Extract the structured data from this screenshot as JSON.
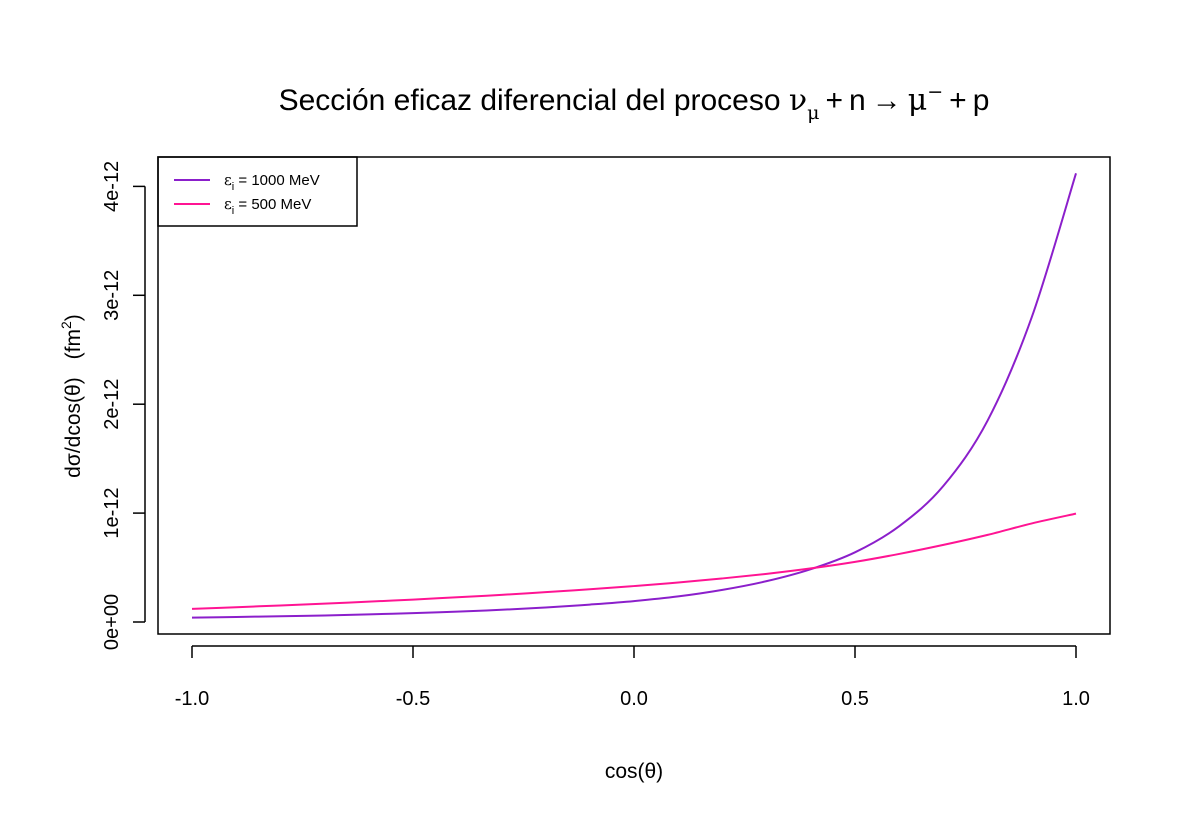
{
  "chart_data": {
    "type": "line",
    "title": {
      "text": "Sección  eficaz  diferencial  del  proceso",
      "nu": "ν",
      "nu_sub": "μ",
      "plus1": "+",
      "n": "n",
      "arrow": "→",
      "mu": "μ",
      "mu_sup": "−",
      "plus2": "+",
      "p": "p"
    },
    "xlabel": "cos(θ)",
    "ylabel": {
      "main": "dσ/dcos(θ)",
      "unit_open": "(fm",
      "unit_sup": "2",
      "unit_close": ")"
    },
    "xlim": [
      -1.0,
      1.0
    ],
    "ylim": [
      0,
      4.1e-12
    ],
    "x_ticks": [
      -1.0,
      -0.5,
      0.0,
      0.5,
      1.0
    ],
    "x_tick_labels": [
      "-1.0",
      "-0.5",
      "0.0",
      "0.5",
      "1.0"
    ],
    "y_ticks": [
      0,
      1e-12,
      2e-12,
      3e-12,
      4e-12
    ],
    "y_tick_labels": [
      "0e+00",
      "1e-12",
      "2e-12",
      "3e-12",
      "4e-12"
    ],
    "grid": false,
    "legend_position": "top-left",
    "x": [
      -1.0,
      -0.9,
      -0.8,
      -0.7,
      -0.6,
      -0.5,
      -0.4,
      -0.3,
      -0.2,
      -0.1,
      0.0,
      0.1,
      0.2,
      0.3,
      0.4,
      0.5,
      0.6,
      0.7,
      0.8,
      0.9,
      1.0
    ],
    "series": [
      {
        "name": "εi = 1000 MeV",
        "legend_eps": "ε",
        "legend_sub": "i",
        "legend_rest": " = 1000  MeV",
        "color": "#8B1FCB",
        "values": [
          4e-14,
          4.6e-14,
          5.3e-14,
          6e-14,
          7e-14,
          8.2e-14,
          9.5e-14,
          1.12e-13,
          1.33e-13,
          1.6e-13,
          1.92e-13,
          2.35e-13,
          2.95e-13,
          3.75e-13,
          4.85e-13,
          6.4e-13,
          8.8e-13,
          1.25e-12,
          1.85e-12,
          2.8e-12,
          4.12e-12
        ]
      },
      {
        "name": "εi = 500 MeV",
        "legend_eps": "ε",
        "legend_sub": "i",
        "legend_rest": " = 500  MeV",
        "color": "#FF1493",
        "values": [
          1.2e-13,
          1.36e-13,
          1.52e-13,
          1.69e-13,
          1.87e-13,
          2.06e-13,
          2.27e-13,
          2.49e-13,
          2.74e-13,
          3.01e-13,
          3.3e-13,
          3.63e-13,
          4e-13,
          4.42e-13,
          4.92e-13,
          5.52e-13,
          6.25e-13,
          7.08e-13,
          8e-13,
          9.05e-13,
          9.95e-13
        ]
      }
    ]
  }
}
